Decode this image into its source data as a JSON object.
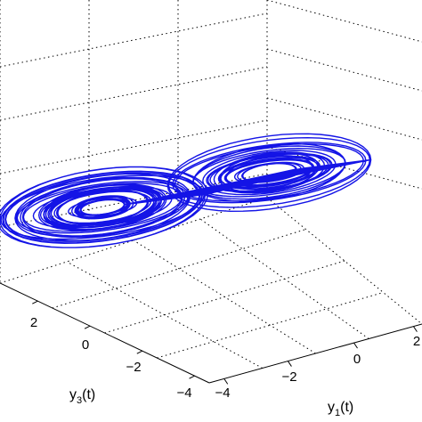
{
  "chart_data": {
    "type": "line",
    "projection": "3d",
    "title": "",
    "grid": true,
    "series_color": "#1414e6",
    "axes": {
      "y1": {
        "name": "y",
        "subscript": "1",
        "suffix": "(t)",
        "ticks": [
          {
            "value": -4,
            "label": "−4"
          },
          {
            "value": -2,
            "label": "−2"
          },
          {
            "value": 0,
            "label": "0"
          },
          {
            "value": 2,
            "label": "2"
          }
        ],
        "range": [
          -4,
          3
        ]
      },
      "y3": {
        "name": "y",
        "subscript": "3",
        "suffix": "(t)",
        "ticks": [
          {
            "value": -4,
            "label": "−4"
          },
          {
            "value": -2,
            "label": "−2"
          },
          {
            "value": 0,
            "label": "0"
          },
          {
            "value": 2,
            "label": "2"
          }
        ],
        "range": [
          -4,
          3
        ]
      }
    },
    "trajectory": {
      "description_free": true,
      "loops": 60,
      "left_center": [
        -2.6,
        -0.2
      ],
      "right_center": [
        1.3,
        0.4
      ],
      "amplitude_range": [
        0.4,
        2.2
      ]
    }
  }
}
